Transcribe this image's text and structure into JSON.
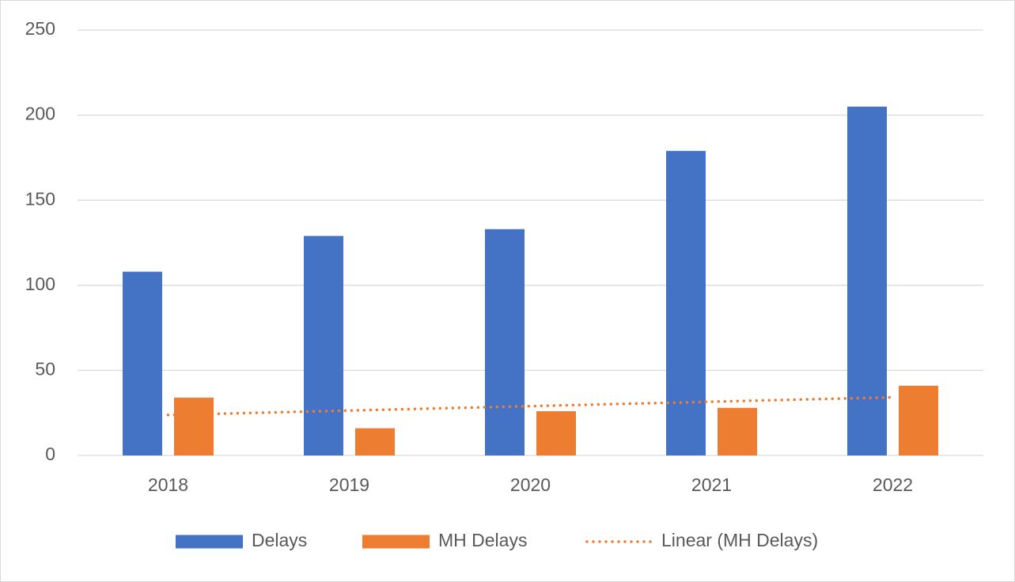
{
  "chart_data": {
    "type": "bar",
    "categories": [
      "2018",
      "2019",
      "2020",
      "2021",
      "2022"
    ],
    "series": [
      {
        "name": "Delays",
        "color": "#4472c4",
        "values": [
          108,
          129,
          133,
          179,
          205
        ]
      },
      {
        "name": "MH Delays",
        "color": "#ed7d31",
        "values": [
          34,
          16,
          26,
          28,
          41
        ]
      },
      {
        "name": "Linear (MH Delays)",
        "color": "#ed7d31",
        "style": "dotted",
        "values": [
          23.8,
          26.4,
          29,
          31.6,
          34.2
        ]
      }
    ],
    "ylim": [
      0,
      250
    ],
    "yticks": [
      0,
      50,
      100,
      150,
      200,
      250
    ],
    "grid": true,
    "legend": "bottom"
  }
}
